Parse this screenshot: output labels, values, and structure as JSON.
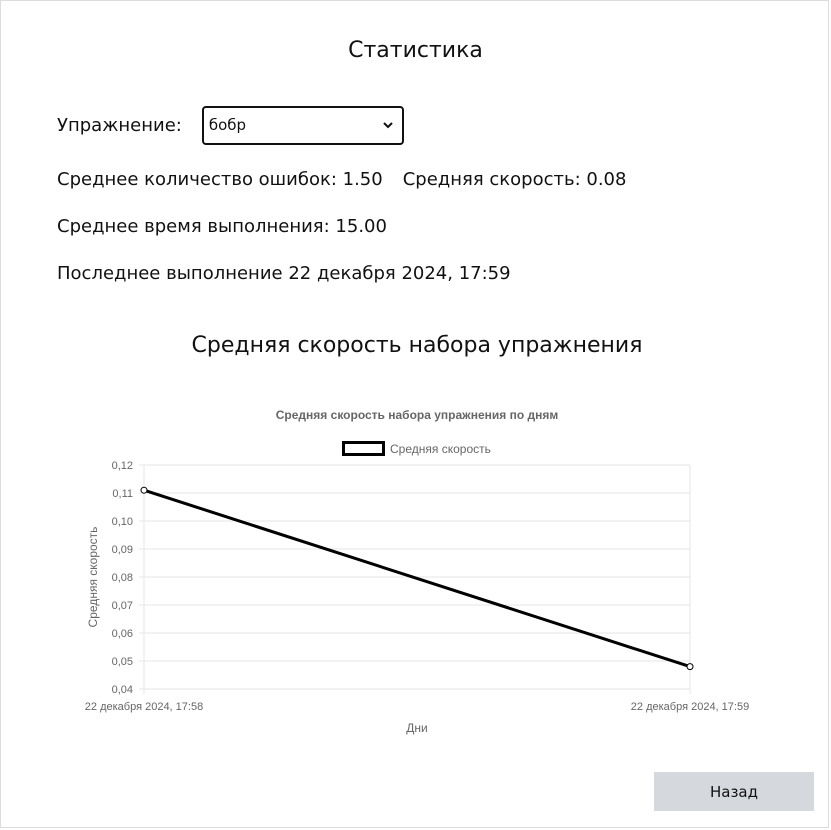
{
  "page": {
    "title": "Статистика"
  },
  "exercise": {
    "label": "Упражнение:",
    "selected": "бобр"
  },
  "stats": {
    "avg_errors_label": "Среднее количество ошибок: 1.50",
    "avg_speed_label": "Средняя скорость: 0.08",
    "avg_time_label": "Среднее время выполнения: 15.00",
    "last_run_label": "Последнее выполнение 22 декабря 2024, 17:59"
  },
  "chart_section": {
    "heading": "Средняя скорость набора упражнения"
  },
  "chart_data": {
    "type": "line",
    "title": "Средняя скорость набора упражнения по дням",
    "xlabel": "Дни",
    "ylabel": "Средняя скорость",
    "legend_position": "top",
    "grid": true,
    "categories": [
      "22 декабря 2024, 17:58",
      "22 декабря 2024, 17:59"
    ],
    "series": [
      {
        "name": "Средняя скорость",
        "values": [
          0.111,
          0.048
        ],
        "color": "#000000"
      }
    ],
    "ylim": [
      0.04,
      0.12
    ],
    "yticks": [
      "0,12",
      "0,11",
      "0,10",
      "0,09",
      "0,08",
      "0,07",
      "0,06",
      "0,05",
      "0,04"
    ]
  },
  "actions": {
    "back_label": "Назад"
  },
  "icons": {
    "select_arrow": "chevron-down-icon"
  },
  "colors": {
    "button_bg": "#d5d8dd",
    "grid": "#e5e5e5",
    "line": "#000000"
  }
}
